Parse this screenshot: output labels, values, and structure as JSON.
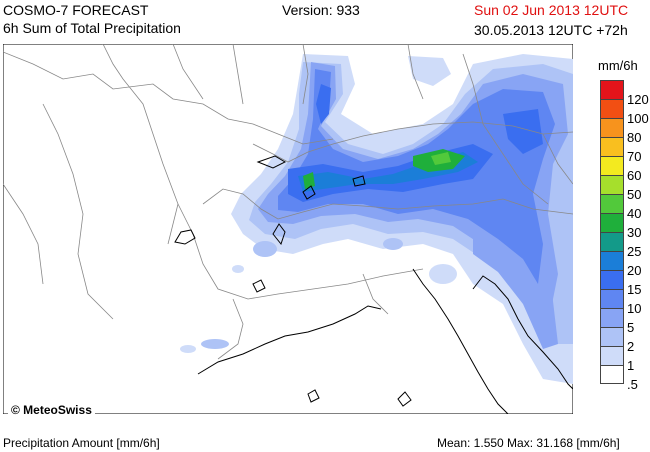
{
  "header": {
    "title": "COSMO-7 FORECAST",
    "subtitle": "6h Sum of Total Precipitation",
    "version": "Version: 933",
    "valid_time": "Sun 02 Jun 2013 12UTC",
    "init_time": "30.05.2013 12UTC +72h"
  },
  "legend": {
    "unit": "mm/6h",
    "classes": [
      {
        "label": "120",
        "color": "#e4141a"
      },
      {
        "label": "100",
        "color": "#f24f13"
      },
      {
        "label": "80",
        "color": "#f7931d"
      },
      {
        "label": "70",
        "color": "#f9bf1f"
      },
      {
        "label": "60",
        "color": "#f3ea1f"
      },
      {
        "label": "50",
        "color": "#a6df2c"
      },
      {
        "label": "40",
        "color": "#52c93b"
      },
      {
        "label": "30",
        "color": "#1faf3b"
      },
      {
        "label": "25",
        "color": "#139a89"
      },
      {
        "label": "20",
        "color": "#1b7ed8"
      },
      {
        "label": "15",
        "color": "#3a6ef0"
      },
      {
        "label": "10",
        "color": "#5f86f2"
      },
      {
        "label": "5",
        "color": "#88a4f4"
      },
      {
        "label": "2",
        "color": "#aec3f6"
      },
      {
        "label": "1",
        "color": "#cfdcf9"
      },
      {
        "label": ".5",
        "color": "#ffffff"
      }
    ]
  },
  "map": {
    "copyright": "© MeteoSwiss",
    "land_color": "#ffffff",
    "border_color": "#888888",
    "coast_color": "#000000"
  },
  "footer": {
    "left": "Precipitation Amount [mm/6h]",
    "right": "Mean:  1.550 Max:  31.168 [mm/6h]"
  }
}
